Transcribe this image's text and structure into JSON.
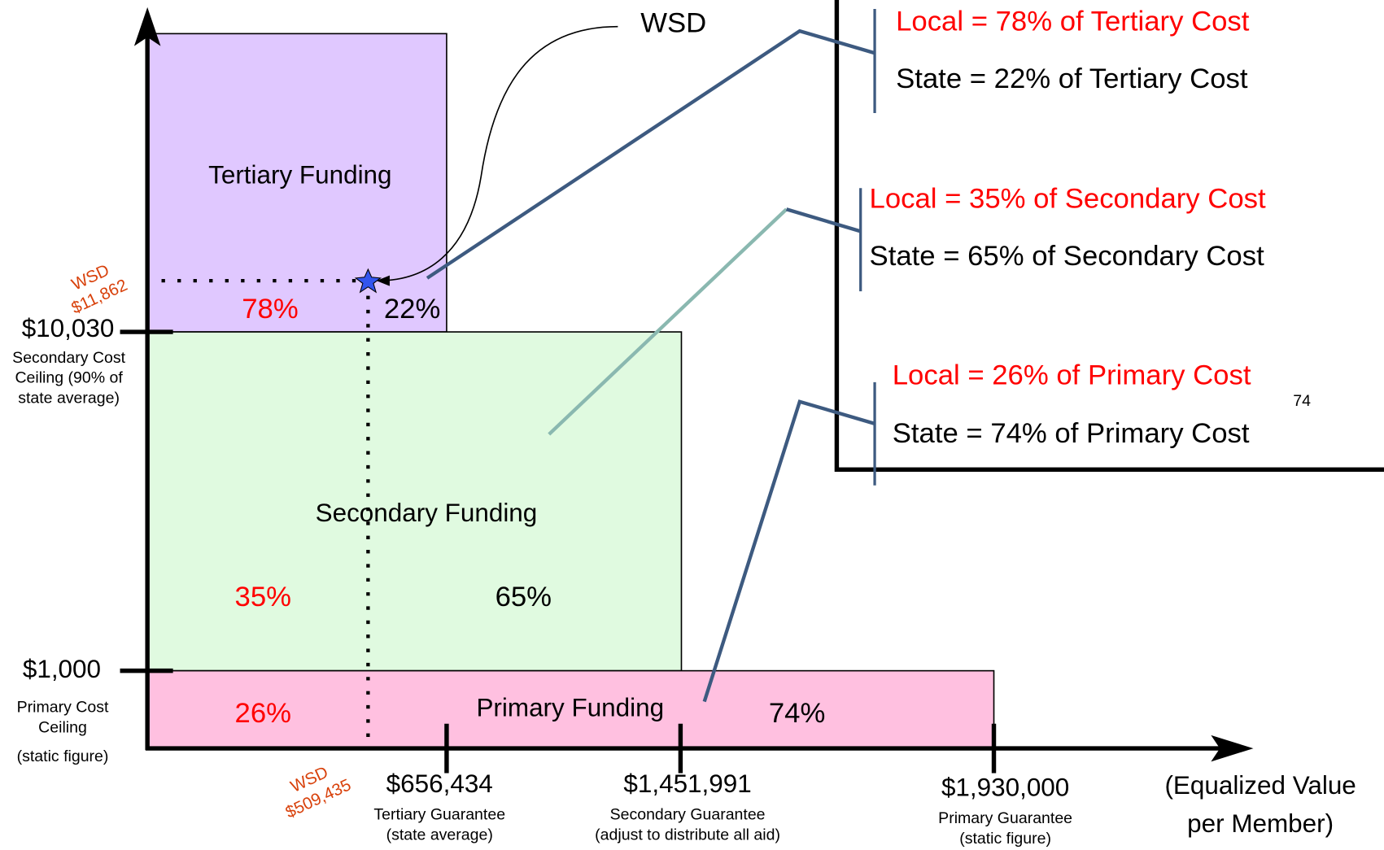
{
  "regions": {
    "tertiary": {
      "label": "Tertiary Funding",
      "local": "78%",
      "state": "22%"
    },
    "secondary": {
      "label": "Secondary Funding",
      "local": "35%",
      "state": "65%"
    },
    "primary": {
      "label": "Primary Funding",
      "local": "26%",
      "state": "74%"
    }
  },
  "y_axis": [
    {
      "value": "$10,030",
      "caption": [
        "Secondary Cost",
        "Ceiling (90% of",
        "state average)"
      ]
    },
    {
      "value": "$1,000",
      "caption": [
        "Primary Cost",
        "Ceiling",
        "(static figure)"
      ]
    }
  ],
  "x_axis": [
    {
      "value": "$656,434",
      "caption": [
        "Tertiary Guarantee",
        "(state average)"
      ]
    },
    {
      "value": "$1,451,991",
      "caption": [
        "Secondary Guarantee",
        "(adjust to distribute all aid)"
      ]
    },
    {
      "value": "$1,930,000",
      "caption": [
        "Primary Guarantee",
        "(static figure)"
      ]
    }
  ],
  "x_axis_label": [
    "(Equalized Value",
    "per Member)"
  ],
  "wsd": {
    "label": "WSD",
    "y_marker": [
      "WSD",
      "$11,862"
    ],
    "x_marker": [
      "WSD",
      "$509,435"
    ]
  },
  "legend_box": [
    {
      "local": "Local = 78% of Tertiary Cost",
      "state": "State = 22% of Tertiary Cost"
    },
    {
      "local": "Local = 35% of Secondary Cost",
      "state": "State = 65% of Secondary Cost"
    },
    {
      "local": "Local = 26% of Primary Cost",
      "state": "State = 74% of Primary Cost",
      "note": "74"
    }
  ]
}
